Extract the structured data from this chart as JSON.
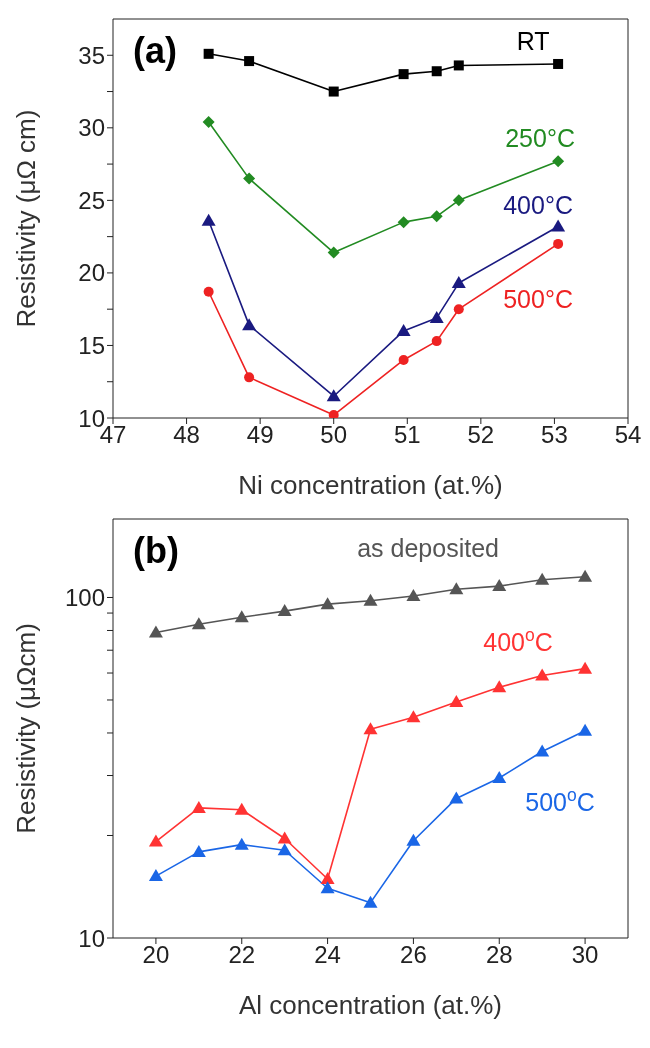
{
  "chart_data": [
    {
      "type": "line",
      "annotations": [
        "(a)"
      ],
      "xlabel": "Ni concentration (at.%)",
      "ylabel": "Resistivity (μΩ cm)",
      "xlim": [
        47,
        54
      ],
      "xticks": [
        47,
        48,
        49,
        50,
        51,
        52,
        53,
        54
      ],
      "ylim": [
        10,
        37.5
      ],
      "yticks": [
        10,
        {
          "value": 12.5,
          "label": null
        },
        15,
        {
          "value": 17.5,
          "label": null
        },
        20,
        {
          "value": 22.5,
          "label": null
        },
        25,
        {
          "value": 27.5,
          "label": null
        },
        30,
        {
          "value": 32.5,
          "label": null
        },
        35
      ],
      "x": [
        48.3,
        48.85,
        50,
        50.95,
        51.4,
        51.7,
        53.05
      ],
      "series": [
        {
          "name": "RT",
          "color": "#000000",
          "marker": "square",
          "values": [
            35.1,
            34.6,
            32.5,
            33.7,
            33.9,
            34.3,
            34.4
          ]
        },
        {
          "name": "250°C",
          "color": "#228b22",
          "marker": "diamond",
          "values": [
            30.4,
            26.5,
            21.4,
            23.5,
            23.9,
            25.0,
            27.7
          ]
        },
        {
          "name": "400°C",
          "color": "#1a1a80",
          "marker": "triangle",
          "values": [
            23.6,
            16.4,
            11.5,
            16.0,
            16.9,
            19.3,
            23.2
          ]
        },
        {
          "name": "500°C",
          "color": "#ee2222",
          "marker": "circle",
          "values": [
            18.7,
            12.8,
            10.2,
            14.0,
            15.3,
            17.5,
            22.0
          ]
        }
      ]
    },
    {
      "type": "line",
      "annotations": [
        "(b)"
      ],
      "xlabel": "Al concentration (at.%)",
      "ylabel": "Resistivity (μΩcm)",
      "log": "y",
      "xlim": [
        19,
        31
      ],
      "xticks": [
        20,
        22,
        24,
        26,
        28,
        30
      ],
      "ylim": [
        10,
        170
      ],
      "yticks": [
        10,
        {
          "value": 20,
          "label": null
        },
        {
          "value": 30,
          "label": null
        },
        {
          "value": 40,
          "label": null
        },
        {
          "value": 50,
          "label": null
        },
        {
          "value": 60,
          "label": null
        },
        {
          "value": 70,
          "label": null
        },
        {
          "value": 80,
          "label": null
        },
        {
          "value": 90,
          "label": null
        },
        100
      ],
      "x": [
        20,
        21,
        22,
        23,
        24,
        25,
        26,
        27,
        28,
        29,
        30
      ],
      "marker": "triangle",
      "series": [
        {
          "name": "as deposited",
          "color": "#555555",
          "values": [
            78.9,
            83.4,
            87.5,
            91.2,
            95.6,
            97.8,
            101,
            105.7,
            108,
            112.7,
            115
          ]
        },
        {
          "name": "400$^{o}$C",
          "color": "#ff3333",
          "values": [
            19.2,
            24.1,
            23.8,
            19.6,
            14.9,
            41.0,
            44.5,
            49.3,
            54.5,
            59.0,
            61.8
          ]
        },
        {
          "name": "500$^{o}$C",
          "color": "#1a66e6",
          "values": [
            15.2,
            17.9,
            18.8,
            18.1,
            14.0,
            12.7,
            19.3,
            25.7,
            29.5,
            35.3,
            40.6
          ]
        }
      ]
    }
  ]
}
